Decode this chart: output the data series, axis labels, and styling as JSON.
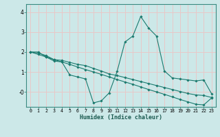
{
  "xlabel": "Humidex (Indice chaleur)",
  "background_color": "#cce8e8",
  "grid_color": "#e8c8c8",
  "line_color": "#1a7a6e",
  "xlim": [
    -0.5,
    23.5
  ],
  "ylim": [
    -0.75,
    4.4
  ],
  "yticks": [
    0,
    1,
    2,
    3,
    4
  ],
  "ytick_labels": [
    "-0",
    "1",
    "2",
    "3",
    "4"
  ],
  "xticks": [
    0,
    1,
    2,
    3,
    4,
    5,
    6,
    7,
    8,
    9,
    10,
    11,
    12,
    13,
    14,
    15,
    16,
    17,
    18,
    19,
    20,
    21,
    22,
    23
  ],
  "series": [
    [
      2.0,
      2.0,
      1.75,
      1.55,
      1.5,
      0.85,
      0.75,
      0.65,
      -0.55,
      -0.45,
      -0.05,
      1.02,
      2.5,
      2.8,
      3.78,
      3.2,
      2.8,
      1.05,
      0.7,
      0.65,
      0.6,
      0.55,
      0.6,
      -0.1
    ],
    [
      2.0,
      1.88,
      1.75,
      1.62,
      1.5,
      1.38,
      1.25,
      1.12,
      1.0,
      0.88,
      0.75,
      0.62,
      0.5,
      0.38,
      0.25,
      0.12,
      0.0,
      -0.12,
      -0.25,
      -0.38,
      -0.5,
      -0.62,
      -0.65,
      -0.3
    ],
    [
      2.0,
      1.95,
      1.82,
      1.62,
      1.58,
      1.48,
      1.38,
      1.32,
      1.18,
      1.05,
      0.9,
      0.82,
      0.72,
      0.62,
      0.52,
      0.42,
      0.32,
      0.22,
      0.12,
      0.02,
      -0.08,
      -0.15,
      -0.18,
      -0.28
    ]
  ]
}
